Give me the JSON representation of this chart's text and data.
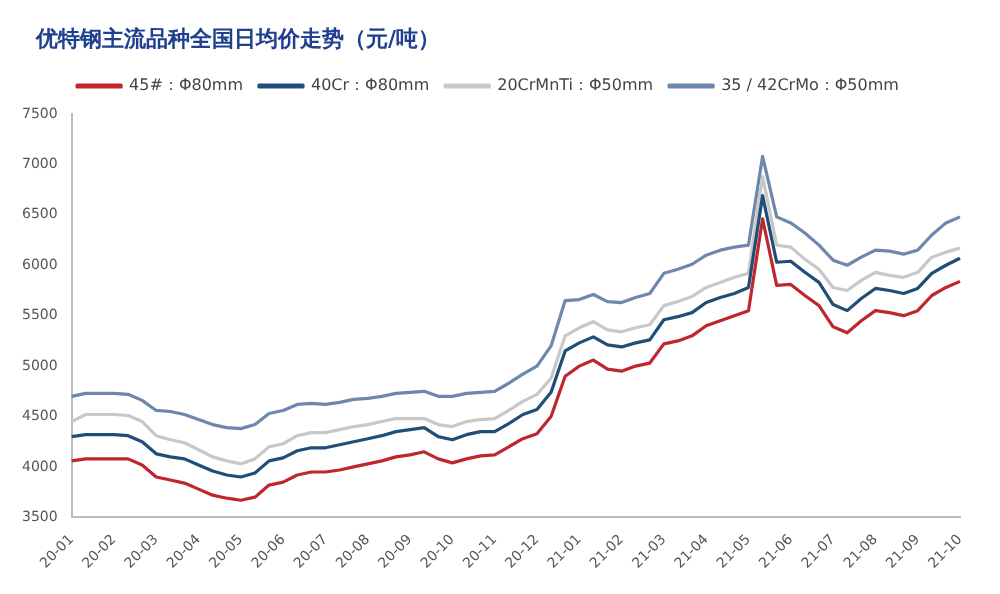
{
  "chart_data": {
    "type": "line",
    "title": "优特钢主流品种全国日均价走势（元/吨）",
    "categories": [
      "20-01",
      null,
      null,
      "20-02",
      null,
      null,
      "20-03",
      null,
      null,
      "20-04",
      null,
      null,
      "20-05",
      null,
      null,
      "20-06",
      null,
      null,
      "20-07",
      null,
      null,
      "20-08",
      null,
      null,
      "20-09",
      null,
      null,
      "20-10",
      null,
      null,
      "20-11",
      null,
      null,
      "20-12",
      null,
      null,
      "21-01",
      null,
      null,
      "21-02",
      null,
      null,
      "21-03",
      null,
      null,
      "21-04",
      null,
      null,
      "21-05",
      null,
      null,
      "21-06",
      null,
      null,
      "21-07",
      null,
      null,
      "21-08",
      null,
      null,
      "21-09",
      null,
      null,
      "21-10"
    ],
    "series": [
      {
        "name": "45#：Φ80mm",
        "color": "#c0272d",
        "values": [
          4060,
          4080,
          4080,
          4080,
          4080,
          4020,
          3900,
          3870,
          3840,
          3780,
          3720,
          3690,
          3670,
          3700,
          3820,
          3850,
          3920,
          3950,
          3950,
          3970,
          4000,
          4030,
          4060,
          4100,
          4120,
          4150,
          4080,
          4040,
          4080,
          4110,
          4120,
          4200,
          4280,
          4330,
          4500,
          4900,
          5000,
          5060,
          4970,
          4950,
          5000,
          5030,
          5220,
          5250,
          5300,
          5400,
          5450,
          5500,
          5550,
          6460,
          5800,
          5810,
          5700,
          5600,
          5390,
          5330,
          5450,
          5550,
          5530,
          5500,
          5550,
          5700,
          5780,
          5840
        ]
      },
      {
        "name": "40Cr：Φ80mm",
        "color": "#1f4e79",
        "values": [
          4300,
          4320,
          4320,
          4320,
          4310,
          4250,
          4130,
          4100,
          4080,
          4020,
          3960,
          3920,
          3900,
          3940,
          4060,
          4090,
          4160,
          4190,
          4190,
          4220,
          4250,
          4280,
          4310,
          4350,
          4370,
          4390,
          4300,
          4270,
          4320,
          4350,
          4350,
          4430,
          4520,
          4570,
          4740,
          5150,
          5230,
          5290,
          5210,
          5190,
          5230,
          5260,
          5460,
          5490,
          5530,
          5630,
          5680,
          5720,
          5780,
          6690,
          6030,
          6040,
          5930,
          5830,
          5610,
          5550,
          5670,
          5770,
          5750,
          5720,
          5770,
          5920,
          6000,
          6070
        ]
      },
      {
        "name": "20CrMnTi：Φ50mm",
        "color": "#c8c8c8",
        "values": [
          4450,
          4520,
          4520,
          4520,
          4510,
          4450,
          4310,
          4270,
          4240,
          4170,
          4100,
          4060,
          4030,
          4080,
          4200,
          4230,
          4310,
          4340,
          4340,
          4370,
          4400,
          4420,
          4450,
          4480,
          4480,
          4480,
          4420,
          4400,
          4450,
          4470,
          4480,
          4560,
          4650,
          4720,
          4880,
          5300,
          5380,
          5440,
          5360,
          5340,
          5380,
          5410,
          5600,
          5640,
          5690,
          5780,
          5830,
          5880,
          5920,
          6880,
          6200,
          6180,
          6060,
          5960,
          5780,
          5750,
          5850,
          5930,
          5900,
          5880,
          5930,
          6080,
          6130,
          6170
        ]
      },
      {
        "name": "35 / 42CrMo：Φ50mm",
        "color": "#6d87ad",
        "values": [
          4700,
          4730,
          4730,
          4730,
          4720,
          4660,
          4560,
          4550,
          4520,
          4470,
          4420,
          4390,
          4380,
          4420,
          4530,
          4560,
          4620,
          4630,
          4620,
          4640,
          4670,
          4680,
          4700,
          4730,
          4740,
          4750,
          4700,
          4700,
          4730,
          4740,
          4750,
          4830,
          4920,
          5000,
          5200,
          5650,
          5660,
          5710,
          5640,
          5630,
          5680,
          5720,
          5920,
          5960,
          6010,
          6100,
          6150,
          6180,
          6200,
          7080,
          6480,
          6420,
          6320,
          6200,
          6050,
          6000,
          6080,
          6150,
          6140,
          6110,
          6150,
          6300,
          6420,
          6480
        ]
      }
    ],
    "ylim": [
      3500,
      7500
    ],
    "yticks": [
      3500,
      4000,
      4500,
      5000,
      5500,
      6000,
      6500,
      7000,
      7500
    ],
    "grid": false,
    "legend": "top",
    "marker": "none",
    "line_style": "solid"
  }
}
